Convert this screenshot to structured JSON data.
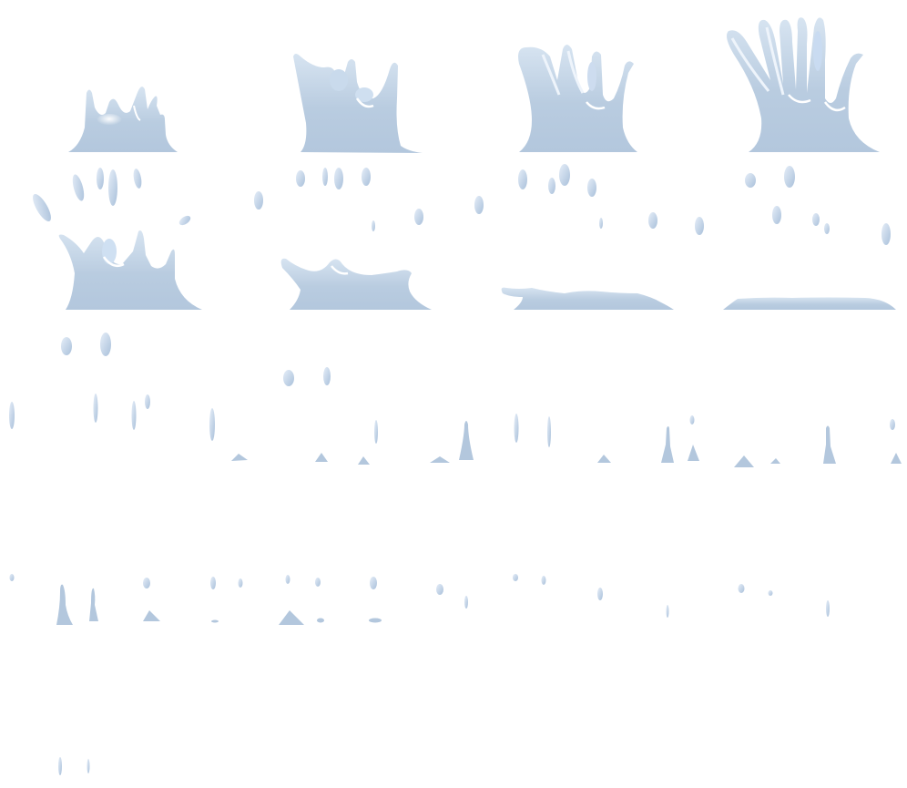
{
  "sheet": {
    "kind": "sprite-sheet",
    "subject": "water-splash-animation",
    "background": "#ffffff",
    "colors": {
      "water": "#b9cce0",
      "water_light": "#d7e4f1",
      "highlight": "#ffffff",
      "shadow": "#9fb6cf"
    },
    "frames": [
      {
        "id": "f01",
        "phase": "splash-rising-small"
      },
      {
        "id": "f02",
        "phase": "splash-rising"
      },
      {
        "id": "f03",
        "phase": "splash-tall"
      },
      {
        "id": "f04",
        "phase": "splash-peak"
      },
      {
        "id": "f05",
        "phase": "splash-breaking"
      },
      {
        "id": "f06",
        "phase": "splash-collapsing"
      },
      {
        "id": "f07",
        "phase": "splash-settling"
      },
      {
        "id": "f08",
        "phase": "splash-flat"
      },
      {
        "id": "f09",
        "phase": "droplets-falling"
      },
      {
        "id": "f10",
        "phase": "droplets-landing"
      },
      {
        "id": "f11",
        "phase": "droplets-small"
      },
      {
        "id": "f12",
        "phase": "droplets-fading"
      },
      {
        "id": "f13",
        "phase": "droplets-final"
      }
    ]
  }
}
